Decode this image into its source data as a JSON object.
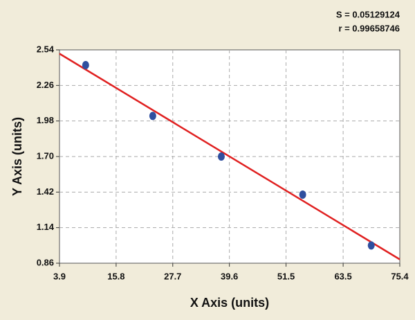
{
  "chart_data": {
    "type": "scatter",
    "annotations": [
      "S = 0.05129124",
      "r = 0.99658746"
    ],
    "xlabel": "X Axis (units)",
    "ylabel": "Y Axis (units)",
    "x": [
      9.4,
      23.5,
      37.9,
      55.0,
      69.4
    ],
    "series": [
      {
        "color": "#2f4f9f",
        "values": [
          2.42,
          2.02,
          1.7,
          1.4,
          1.0
        ]
      }
    ],
    "fit": {
      "color": "#e02020",
      "x": [
        3.9,
        75.4
      ],
      "values": [
        2.51,
        0.89
      ]
    },
    "xlim": [
      3.9,
      75.4
    ],
    "xticks": [
      3.9,
      15.8,
      27.7,
      39.6,
      51.5,
      63.5,
      75.4
    ],
    "ylim": [
      0.86,
      2.54
    ],
    "yticks": [
      0.86,
      1.14,
      1.42,
      {
        "value": 1.7,
        "label": "1.70"
      },
      1.98,
      2.26,
      2.54
    ],
    "grid": true
  }
}
